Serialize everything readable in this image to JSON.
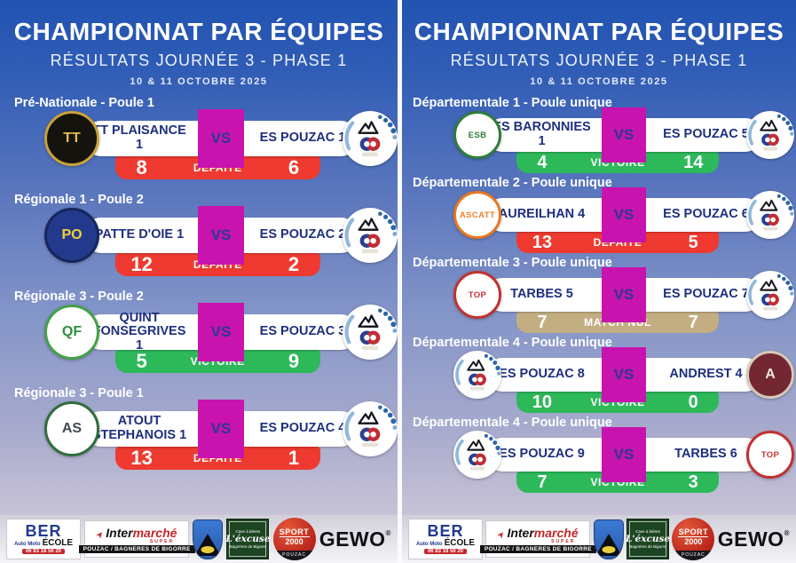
{
  "vs_label": "VS",
  "colors": {
    "result": {
      "loss": "#ee3a30",
      "win": "#2db85a",
      "draw": "#c3ae82"
    },
    "vs": "#c913ae",
    "team_text": "#1e2f7e",
    "background_top": "#2153b2",
    "background_bottom": "#d8d2dc"
  },
  "icons": {
    "intermarche_mark": "➤"
  },
  "panels": [
    {
      "header": {
        "title": "CHAMPIONNAT PAR ÉQUIPES",
        "subtitle": "RÉSULTATS JOURNÉE 3 - PHASE 1",
        "date": "10 & 11 OCTOBRE 2025"
      },
      "matches": [
        {
          "league": "Pré-Nationale - Poule 1",
          "home": "TT PLAISANCE 1",
          "away": "ES POUZAC 1",
          "home_score": "8",
          "away_score": "6",
          "result": "DÉFAITE",
          "result_type": "loss",
          "home_logo": {
            "kind": "badge",
            "name": "tt-plaisance-logo",
            "text": "TT",
            "bg": "#15130e",
            "ring": "#caa23a",
            "color": "#e7bd4e"
          },
          "away_logo": {
            "kind": "pouzac",
            "name": "es-pouzac-logo"
          }
        },
        {
          "league": "Régionale 1 - Poule 2",
          "home": "PATTE D'OIE 1",
          "away": "ES POUZAC 2",
          "home_score": "12",
          "away_score": "2",
          "result": "DÉFAITE",
          "result_type": "loss",
          "home_logo": {
            "kind": "badge",
            "name": "patte-doie-logo",
            "text": "PO",
            "bg": "#233a8c",
            "ring": "#16265e",
            "color": "#f2cf3a"
          },
          "away_logo": {
            "kind": "pouzac",
            "name": "es-pouzac-logo"
          }
        },
        {
          "league": "Régionale 3 - Poule 2",
          "home": "QUINT FONSEGRIVES 1",
          "away": "ES POUZAC 3",
          "home_score": "5",
          "away_score": "9",
          "result": "VICTOIRE",
          "result_type": "win",
          "home_logo": {
            "kind": "badge",
            "name": "quint-fonsegrives-logo",
            "text": "QF",
            "bg": "#ffffff",
            "ring": "#44a04a",
            "color": "#2f8f3e"
          },
          "away_logo": {
            "kind": "pouzac",
            "name": "es-pouzac-logo"
          }
        },
        {
          "league": "Régionale 3 - Poule 1",
          "home": "ATOUT STEPHANOIS 1",
          "away": "ES POUZAC 4",
          "home_score": "13",
          "away_score": "1",
          "result": "DEFAITE",
          "result_type": "loss",
          "home_logo": {
            "kind": "badge",
            "name": "atout-stephanois-logo",
            "text": "AS",
            "bg": "#ffffff",
            "ring": "#2f6e3a",
            "color": "#45494f"
          },
          "away_logo": {
            "kind": "pouzac",
            "name": "es-pouzac-logo"
          }
        }
      ]
    },
    {
      "header": {
        "title": "CHAMPIONNAT PAR ÉQUIPES",
        "subtitle": "RÉSULTATS JOURNÉE 3 - PHASE 1",
        "date": "10 & 11 OCTOBRE 2025"
      },
      "matches": [
        {
          "league": "Départementale 1 - Poule unique",
          "home": "ES BARONNIES 1",
          "away": "ES POUZAC 5",
          "home_score": "4",
          "away_score": "14",
          "result": "VICTOIRE",
          "result_type": "win",
          "home_logo": {
            "kind": "badge",
            "name": "es-baronnies-logo",
            "text": "ESB",
            "bg": "#ffffff",
            "ring": "#2f7d3a",
            "color": "#2f7d3a"
          },
          "away_logo": {
            "kind": "pouzac",
            "name": "es-pouzac-logo"
          }
        },
        {
          "league": "Départementale 2 - Poule unique",
          "home": "AUREILHAN 4",
          "away": "ES POUZAC 6",
          "home_score": "13",
          "away_score": "5",
          "result": "DÉFAITE",
          "result_type": "loss",
          "home_logo": {
            "kind": "badge",
            "name": "ascatt-aureilhan-logo",
            "text": "ASCATT",
            "bg": "#ffffff",
            "ring": "#e87722",
            "color": "#ef7d24"
          },
          "away_logo": {
            "kind": "pouzac",
            "name": "es-pouzac-logo"
          }
        },
        {
          "league": "Départementale 3 - Poule unique",
          "home": "TARBES 5",
          "away": "ES POUZAC 7",
          "home_score": "7",
          "away_score": "7",
          "result": "MATCH NUL",
          "result_type": "draw",
          "home_logo": {
            "kind": "badge",
            "name": "tarbes-odos-logo",
            "text": "TOP",
            "bg": "#ffffff",
            "ring": "#c03232",
            "color": "#c03232"
          },
          "away_logo": {
            "kind": "pouzac",
            "name": "es-pouzac-logo"
          }
        },
        {
          "league": "Départementale 4 - Poule unique",
          "home": "ES POUZAC 8",
          "away": "ANDREST 4",
          "home_score": "10",
          "away_score": "0",
          "result": "VICTOIRE",
          "result_type": "win",
          "home_logo": {
            "kind": "pouzac",
            "name": "es-pouzac-logo"
          },
          "away_logo": {
            "kind": "badge",
            "name": "andrest-logo",
            "text": "A",
            "bg": "#722733",
            "ring": "#d8c9b8",
            "color": "#f0e4d4"
          }
        },
        {
          "league": "Départementale 4 - Poule unique",
          "home": "ES POUZAC 9",
          "away": "TARBES 6",
          "home_score": "7",
          "away_score": "3",
          "result": "VICTOIRE",
          "result_type": "win",
          "home_logo": {
            "kind": "pouzac",
            "name": "es-pouzac-logo"
          },
          "away_logo": {
            "kind": "badge",
            "name": "tarbes-odos-logo",
            "text": "TOP",
            "bg": "#ffffff",
            "ring": "#c03232",
            "color": "#c03232"
          }
        }
      ]
    }
  ],
  "sponsors": {
    "ber": {
      "name": "BER",
      "automoto": "Auto Moto",
      "ecole": "ÉCOLE",
      "phone": "06 83 18 56 20"
    },
    "intermarche": {
      "inter": "Inter",
      "marche": "marché",
      "super": "SUPER",
      "location": "POUZAC / BAGNERES DE BIGORRE"
    },
    "lexcuse": {
      "top": "Cave à bières",
      "name": "L'éxcuse",
      "city": "Bagnères de Bigorre"
    },
    "sport2000": {
      "line1": "SPORT",
      "line2": "2000",
      "city": "POUZAC"
    },
    "gewo": {
      "name": "GEWO",
      "reg": "®"
    }
  }
}
